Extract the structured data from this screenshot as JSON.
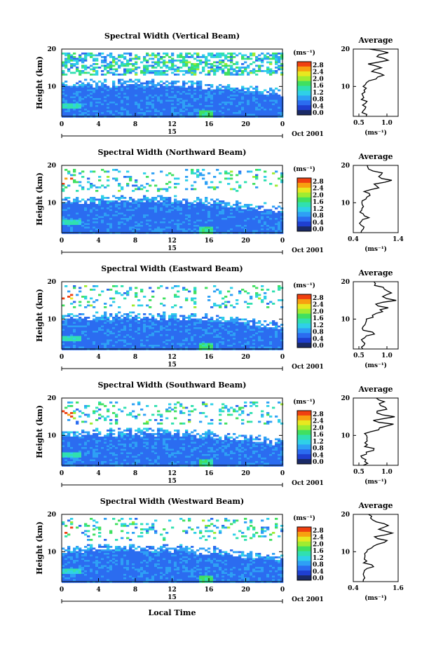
{
  "colors": {
    "frame": "#000000",
    "background": "#ffffff",
    "colorbar": [
      "#1a2a66",
      "#1f3fd0",
      "#2b6cf0",
      "#2ea0f5",
      "#2fd0e8",
      "#30e0b0",
      "#40e060",
      "#a0ec30",
      "#e8e820",
      "#f8a010",
      "#f04010"
    ]
  },
  "shared": {
    "date_label": "Oct 2001",
    "day_label": "15",
    "xlabel": "Local Time",
    "ylabel": "Height (km)",
    "unit_label": "(ms⁻¹)",
    "colorbar_ticks": [
      "2.8",
      "2.4",
      "2.0",
      "1.6",
      "1.2",
      "0.8",
      "0.4",
      "0.0"
    ],
    "avg_title": "Average"
  },
  "chart_data": [
    {
      "type": "heatmap",
      "title": "Spectral Width (Vertical Beam)",
      "xlabel": "Local Time",
      "ylabel": "Height (km)",
      "x_ticks": [
        "0",
        "4",
        "8",
        "12",
        "16",
        "20",
        "0"
      ],
      "y_ticks": [
        "20",
        "10"
      ],
      "ylim": [
        2,
        20
      ],
      "xlim": [
        0,
        24
      ],
      "colorbar": {
        "label": "(ms⁻¹)",
        "range": [
          0,
          3.0
        ]
      },
      "average": {
        "xlabel": "(ms⁻¹)",
        "x_ticks": [
          "0.5",
          "1.0"
        ],
        "xlim": [
          0.4,
          1.2
        ],
        "profile": {
          "height": [
            2,
            3,
            4,
            5,
            6,
            7,
            8,
            9,
            10,
            11,
            12,
            13,
            14,
            15,
            16,
            17,
            18,
            19,
            20
          ],
          "width": [
            0.62,
            0.58,
            0.6,
            0.56,
            0.64,
            0.58,
            0.55,
            0.6,
            0.57,
            0.62,
            0.8,
            0.95,
            0.75,
            0.9,
            0.65,
            1.0,
            0.8,
            1.05,
            0.7
          ]
        }
      }
    },
    {
      "type": "heatmap",
      "title": "Spectral Width (Northward Beam)",
      "xlabel": "Local Time",
      "ylabel": "Height (km)",
      "x_ticks": [
        "0",
        "4",
        "8",
        "12",
        "16",
        "20",
        "0"
      ],
      "y_ticks": [
        "20",
        "10"
      ],
      "ylim": [
        2,
        20
      ],
      "xlim": [
        0,
        24
      ],
      "colorbar": {
        "label": "(ms⁻¹)",
        "range": [
          0,
          3.0
        ]
      },
      "average": {
        "xlabel": "(ms⁻¹)",
        "x_ticks": [
          "0.4",
          "1.4"
        ],
        "xlim": [
          0.4,
          1.4
        ],
        "profile": {
          "height": [
            2,
            3,
            4,
            5,
            6,
            7,
            8,
            9,
            10,
            11,
            12,
            13,
            14,
            15,
            16,
            17,
            18,
            19,
            20
          ],
          "width": [
            0.55,
            0.62,
            0.58,
            0.6,
            0.75,
            0.6,
            0.58,
            0.62,
            0.6,
            0.7,
            0.78,
            0.65,
            0.95,
            0.85,
            1.25,
            0.95,
            1.05,
            0.75,
            0.7
          ]
        }
      }
    },
    {
      "type": "heatmap",
      "title": "Spectral Width (Eastward Beam)",
      "xlabel": "Local Time",
      "ylabel": "Height (km)",
      "x_ticks": [
        "0",
        "4",
        "8",
        "12",
        "16",
        "20",
        "0"
      ],
      "y_ticks": [
        "20",
        "10"
      ],
      "ylim": [
        2,
        20
      ],
      "xlim": [
        0,
        24
      ],
      "colorbar": {
        "label": "(ms⁻¹)",
        "range": [
          0,
          3.0
        ]
      },
      "average": {
        "xlabel": "(ms⁻¹)",
        "x_ticks": [
          "0.5",
          "1.0"
        ],
        "xlim": [
          0.4,
          1.2
        ],
        "profile": {
          "height": [
            2,
            3,
            4,
            5,
            6,
            7,
            8,
            9,
            10,
            11,
            12,
            13,
            14,
            15,
            16,
            17,
            18,
            19,
            20
          ],
          "width": [
            0.55,
            0.58,
            0.56,
            0.6,
            0.8,
            0.58,
            0.6,
            0.62,
            0.65,
            0.75,
            0.9,
            1.0,
            0.8,
            1.15,
            0.9,
            1.1,
            0.95,
            0.8,
            0.75
          ]
        }
      }
    },
    {
      "type": "heatmap",
      "title": "Spectral Width (Southward Beam)",
      "xlabel": "Local Time",
      "ylabel": "Height (km)",
      "x_ticks": [
        "0",
        "4",
        "8",
        "12",
        "16",
        "20",
        "0"
      ],
      "y_ticks": [
        "20",
        "10"
      ],
      "ylim": [
        2,
        20
      ],
      "xlim": [
        0,
        24
      ],
      "colorbar": {
        "label": "(ms⁻¹)",
        "range": [
          0,
          3.0
        ]
      },
      "average": {
        "xlabel": "(ms⁻¹)",
        "x_ticks": [
          "0.5",
          "1.0"
        ],
        "xlim": [
          0.4,
          1.2
        ],
        "profile": {
          "height": [
            2,
            3,
            4,
            5,
            6,
            7,
            8,
            9,
            10,
            11,
            12,
            13,
            14,
            15,
            16,
            17,
            18,
            19,
            20
          ],
          "width": [
            0.58,
            0.6,
            0.57,
            0.62,
            0.78,
            0.62,
            0.6,
            0.65,
            0.62,
            0.72,
            0.85,
            1.1,
            0.75,
            1.15,
            0.8,
            1.0,
            0.9,
            0.95,
            0.8
          ]
        }
      }
    },
    {
      "type": "heatmap",
      "title": "Spectral Width (Westward Beam)",
      "xlabel": "Local Time",
      "ylabel": "Height (km)",
      "x_ticks": [
        "0",
        "4",
        "8",
        "12",
        "16",
        "20",
        "0"
      ],
      "y_ticks": [
        "20",
        "10"
      ],
      "ylim": [
        2,
        20
      ],
      "xlim": [
        0,
        24
      ],
      "colorbar": {
        "label": "(ms⁻¹)",
        "range": [
          0,
          3.0
        ]
      },
      "average": {
        "xlabel": "(ms⁻¹)",
        "x_ticks": [
          "0.4",
          "1.6"
        ],
        "xlim": [
          0.4,
          1.6
        ],
        "profile": {
          "height": [
            2,
            3,
            4,
            5,
            6,
            7,
            8,
            9,
            10,
            11,
            12,
            13,
            14,
            15,
            16,
            17,
            18,
            19,
            20
          ],
          "width": [
            0.65,
            0.7,
            0.68,
            0.72,
            0.95,
            0.7,
            0.68,
            0.72,
            0.75,
            0.9,
            1.05,
            1.3,
            0.95,
            1.45,
            1.1,
            1.35,
            1.0,
            0.85,
            0.8
          ]
        }
      }
    }
  ]
}
